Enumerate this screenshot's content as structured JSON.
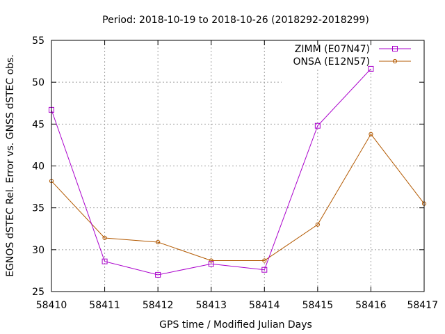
{
  "chart_data": {
    "type": "line",
    "title": "Period: 2018-10-19 to 2018-10-26 (2018292-2018299)",
    "xlabel": "GPS time / Modified Julian Days",
    "ylabel": "EGNOS dSTEC Rel. Error vs. GNSS dSTEC obs.",
    "xlim": [
      58410,
      58417
    ],
    "ylim": [
      25,
      55
    ],
    "xticks": [
      "58410",
      "58411",
      "58412",
      "58413",
      "58414",
      "58415",
      "58416",
      "58417"
    ],
    "yticks": [
      "25",
      "30",
      "35",
      "40",
      "45",
      "50",
      "55"
    ],
    "grid": true,
    "legend_position": "top-right",
    "series": [
      {
        "name": "ZIMM (E07N47)",
        "color": "#aa00cc",
        "marker": "square",
        "x": [
          58410,
          58411,
          58412,
          58413,
          58414,
          58415,
          58416
        ],
        "y": [
          46.7,
          28.6,
          27.0,
          28.3,
          27.6,
          44.8,
          51.6
        ]
      },
      {
        "name": "ONSA (E12N57)",
        "color": "#b35900",
        "marker": "circle",
        "x": [
          58410,
          58411,
          58412,
          58413,
          58414,
          58415,
          58416,
          58417
        ],
        "y": [
          38.2,
          31.4,
          30.9,
          28.7,
          28.7,
          33.0,
          43.8,
          35.5
        ]
      }
    ]
  }
}
